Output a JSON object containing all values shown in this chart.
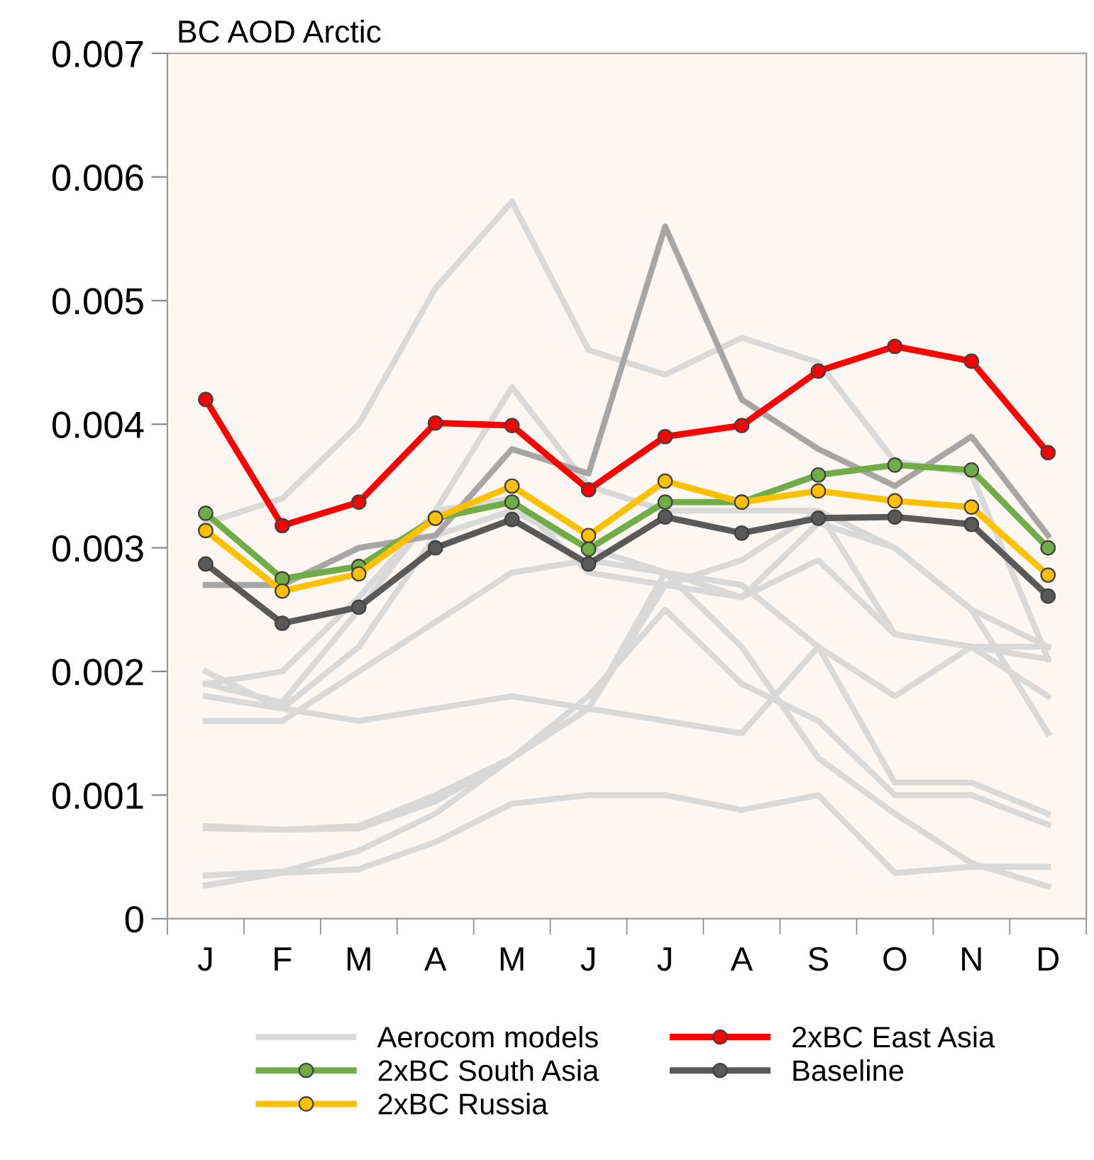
{
  "chart_data": {
    "type": "line",
    "title": "BC AOD Arctic",
    "categories": [
      "J",
      "F",
      "M",
      "A",
      "M",
      "J",
      "J",
      "A",
      "S",
      "O",
      "N",
      "D"
    ],
    "ylim": [
      0,
      0.007
    ],
    "yticks": [
      0,
      0.001,
      0.002,
      0.003,
      0.004,
      0.005,
      0.006,
      0.007
    ],
    "grid": false,
    "legend": "bottom",
    "series": [
      {
        "name": "Aerocom models",
        "color": "#d9d9d9",
        "marker": "none",
        "values": [
          0.0032,
          0.0034,
          0.004,
          0.0051,
          0.0058,
          0.0046,
          0.0044,
          0.0047,
          0.0045,
          0.0037,
          0.0036,
          0.0021
        ]
      },
      {
        "color": "#d9d9d9",
        "marker": "none",
        "values": [
          0.0019,
          0.002,
          0.0026,
          0.0033,
          0.0043,
          0.0035,
          0.0033,
          0.0033,
          0.0033,
          0.003,
          0.0025,
          0.0022
        ]
      },
      {
        "color": "#d9d9d9",
        "marker": "none",
        "values": [
          0.0018,
          0.0017,
          0.0016,
          0.0017,
          0.0018,
          0.0017,
          0.0016,
          0.0015,
          0.0022,
          0.0018,
          0.0022,
          0.0021
        ]
      },
      {
        "color": "#d9d9d9",
        "marker": "none",
        "values": [
          0.0016,
          0.0016,
          0.002,
          0.0024,
          0.0028,
          0.0029,
          0.0028,
          0.0026,
          0.0032,
          0.003,
          0.0025,
          0.0015
        ]
      },
      {
        "color": "#d9d9d9",
        "marker": "none",
        "values": [
          0.002,
          0.0017,
          0.0022,
          0.0031,
          0.0033,
          0.003,
          0.0028,
          0.0027,
          0.0022,
          0.0011,
          0.0011,
          0.00085
        ]
      },
      {
        "color": "#d9d9d9",
        "marker": "none",
        "values": [
          0.0019,
          0.00175,
          0.0025,
          0.0033,
          0.0034,
          0.0028,
          0.0027,
          0.0026,
          0.0029,
          0.0023,
          0.0022,
          0.0018
        ]
      },
      {
        "color": "#d9d9d9",
        "marker": "none",
        "values": [
          0.00073,
          0.00072,
          0.00073,
          0.00095,
          0.0013,
          0.0017,
          0.0028,
          0.0022,
          0.0013,
          0.00085,
          0.00045,
          0.00026
        ]
      },
      {
        "color": "#d9d9d9",
        "marker": "none",
        "values": [
          0.00075,
          0.00072,
          0.00075,
          0.001,
          0.0013,
          0.0018,
          0.0025,
          0.0019,
          0.0016,
          0.001,
          0.001,
          0.00076
        ]
      },
      {
        "color": "#d9d9d9",
        "marker": "none",
        "values": [
          0.00035,
          0.00038,
          0.00055,
          0.00085,
          0.0013,
          0.0017,
          0.0027,
          0.0029,
          0.0033,
          0.0023,
          0.0022,
          0.0022
        ]
      },
      {
        "color": "#d9d9d9",
        "marker": "none",
        "values": [
          0.00027,
          0.00037,
          0.0004,
          0.00062,
          0.00093,
          0.001,
          0.001,
          0.00088,
          0.001,
          0.00037,
          0.00042,
          0.00042
        ]
      },
      {
        "color": "#a6a6a6",
        "marker": "none",
        "values": [
          0.0027,
          0.0027,
          0.003,
          0.0031,
          0.0038,
          0.0036,
          0.0056,
          0.0042,
          0.0038,
          0.0035,
          0.0039,
          0.0031
        ]
      },
      {
        "name": "2xBC East Asia",
        "color": "#ff0000",
        "marker": "circle",
        "values": [
          0.0042,
          0.00318,
          0.00337,
          0.00401,
          0.00399,
          0.00347,
          0.0039,
          0.00399,
          0.00443,
          0.00463,
          0.00451,
          0.00377
        ]
      },
      {
        "name": "2xBC South Asia",
        "color": "#70ad47",
        "marker": "circle",
        "values": [
          0.00328,
          0.00275,
          0.00285,
          0.00324,
          0.00337,
          0.00299,
          0.00337,
          0.00337,
          0.00359,
          0.00367,
          0.00363,
          0.003
        ]
      },
      {
        "name": "Baseline",
        "color": "#595959",
        "marker": "circle",
        "values": [
          0.00287,
          0.00239,
          0.00252,
          0.003,
          0.00323,
          0.00287,
          0.00325,
          0.00312,
          0.00324,
          0.00325,
          0.00319,
          0.00261
        ]
      },
      {
        "name": "2xBC Russia",
        "color": "#ffc000",
        "marker": "circle",
        "values": [
          0.00314,
          0.00265,
          0.00279,
          0.00324,
          0.0035,
          0.0031,
          0.00354,
          0.00337,
          0.00346,
          0.00338,
          0.00333,
          0.00278
        ]
      }
    ]
  }
}
